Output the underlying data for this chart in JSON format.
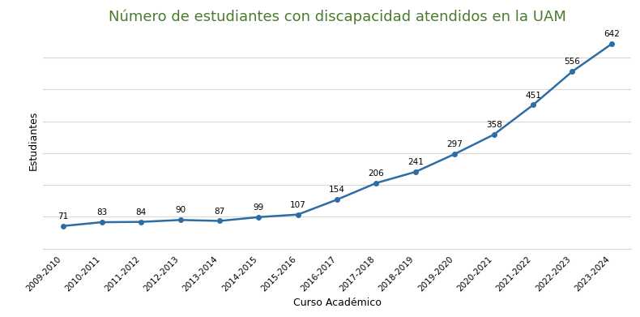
{
  "title": "Número de estudiantes con discapacidad atendidos en la UAM",
  "xlabel": "Curso Académico",
  "ylabel": "Estudiantes",
  "categories": [
    "2009-2010",
    "2010-2011",
    "2011-2012",
    "2012-2013",
    "2013-2014",
    "2014-2015",
    "2015-2016",
    "2016-2017",
    "2017-2018",
    "2018-2019",
    "2019-2020",
    "2020-2021",
    "2021-2022",
    "2022-2023",
    "2023-2024"
  ],
  "values": [
    71,
    83,
    84,
    90,
    87,
    99,
    107,
    154,
    206,
    241,
    297,
    358,
    451,
    556,
    642
  ],
  "line_color": "#2e6da4",
  "marker": "o",
  "marker_size": 4,
  "line_width": 1.8,
  "title_color": "#4a7c2f",
  "title_fontsize": 13,
  "label_fontsize": 9,
  "annotation_fontsize": 7.5,
  "tick_fontsize": 7.5,
  "background_color": "#ffffff",
  "plot_bg_color": "#ffffff",
  "grid_color": "#d9d9d9",
  "ylim": [
    0,
    680
  ],
  "grid_positions": [
    100,
    200,
    300,
    400,
    500,
    600
  ]
}
